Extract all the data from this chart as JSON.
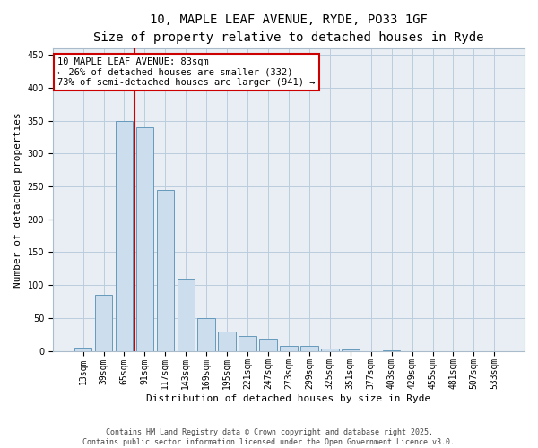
{
  "title_line1": "10, MAPLE LEAF AVENUE, RYDE, PO33 1GF",
  "title_line2": "Size of property relative to detached houses in Ryde",
  "xlabel": "Distribution of detached houses by size in Ryde",
  "ylabel": "Number of detached properties",
  "categories": [
    "13sqm",
    "39sqm",
    "65sqm",
    "91sqm",
    "117sqm",
    "143sqm",
    "169sqm",
    "195sqm",
    "221sqm",
    "247sqm",
    "273sqm",
    "299sqm",
    "325sqm",
    "351sqm",
    "377sqm",
    "403sqm",
    "429sqm",
    "455sqm",
    "481sqm",
    "507sqm",
    "533sqm"
  ],
  "values": [
    5,
    85,
    350,
    340,
    245,
    110,
    50,
    30,
    22,
    18,
    8,
    7,
    3,
    2,
    0,
    1,
    0,
    0,
    0,
    0,
    0
  ],
  "bar_color": "#ccdded",
  "bar_edge_color": "#6699bb",
  "vline_x_index": 3,
  "vline_color": "#cc0000",
  "annotation_text_line1": "10 MAPLE LEAF AVENUE: 83sqm",
  "annotation_text_line2": "← 26% of detached houses are smaller (332)",
  "annotation_text_line3": "73% of semi-detached houses are larger (941) →",
  "annotation_box_color": "#cc0000",
  "ylim": [
    0,
    460
  ],
  "yticks": [
    0,
    50,
    100,
    150,
    200,
    250,
    300,
    350,
    400,
    450
  ],
  "grid_color": "#bbccdd",
  "background_color": "#e8eef4",
  "footer_line1": "Contains HM Land Registry data © Crown copyright and database right 2025.",
  "footer_line2": "Contains public sector information licensed under the Open Government Licence v3.0.",
  "title_fontsize": 10,
  "subtitle_fontsize": 9,
  "axis_label_fontsize": 8,
  "tick_fontsize": 7,
  "annotation_fontsize": 7.5,
  "footer_fontsize": 6
}
